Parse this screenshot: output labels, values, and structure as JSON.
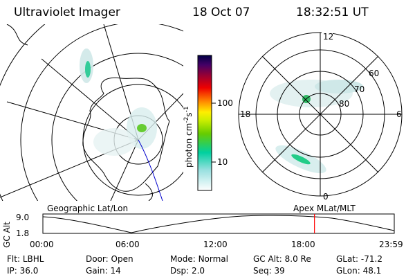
{
  "header": {
    "instrument": "Ultraviolet Imager",
    "date": "18 Oct 07",
    "time": "18:32:51 UT"
  },
  "colorbar": {
    "unit_label": "photon cm",
    "unit_exp1": "-2",
    "unit_s": "s",
    "unit_exp2": "-1",
    "tick_high": "100",
    "tick_low": "10"
  },
  "right_map": {
    "mlt_labels": {
      "top": "12",
      "left": "18",
      "right": "6",
      "bottom": "0"
    },
    "lat_labels": [
      "60",
      "70",
      "80"
    ]
  },
  "panels": {
    "left_caption": "Geographic Lat/Lon",
    "right_caption": "Apex  MLat/MLT"
  },
  "timeline": {
    "ylabel": "GC Alt",
    "y_top": "9.0",
    "y_bottom": "1.8",
    "ticks": [
      "00:00",
      "06:00",
      "12:00",
      "18:00",
      "23:59"
    ],
    "marker_time_hours": 18.55
  },
  "footer": {
    "row1": [
      {
        "label": "Flt:",
        "value": "LBHL"
      },
      {
        "label": "Door:",
        "value": "Open"
      },
      {
        "label": "Mode:",
        "value": "Normal"
      },
      {
        "label": "GC Alt:",
        "value": "8.0 Re"
      },
      {
        "label": "GLat:",
        "value": "-71.2"
      }
    ],
    "row2": [
      {
        "label": "IP:",
        "value": "36.0"
      },
      {
        "label": "Gain:",
        "value": "14"
      },
      {
        "label": "Dsp:",
        "value": "2.0"
      },
      {
        "label": "Seq:",
        "value": "39"
      },
      {
        "label": "GLon:",
        "value": "48.1"
      }
    ]
  },
  "colors": {
    "marker": "#ff0000",
    "trace": "#0000cc"
  }
}
